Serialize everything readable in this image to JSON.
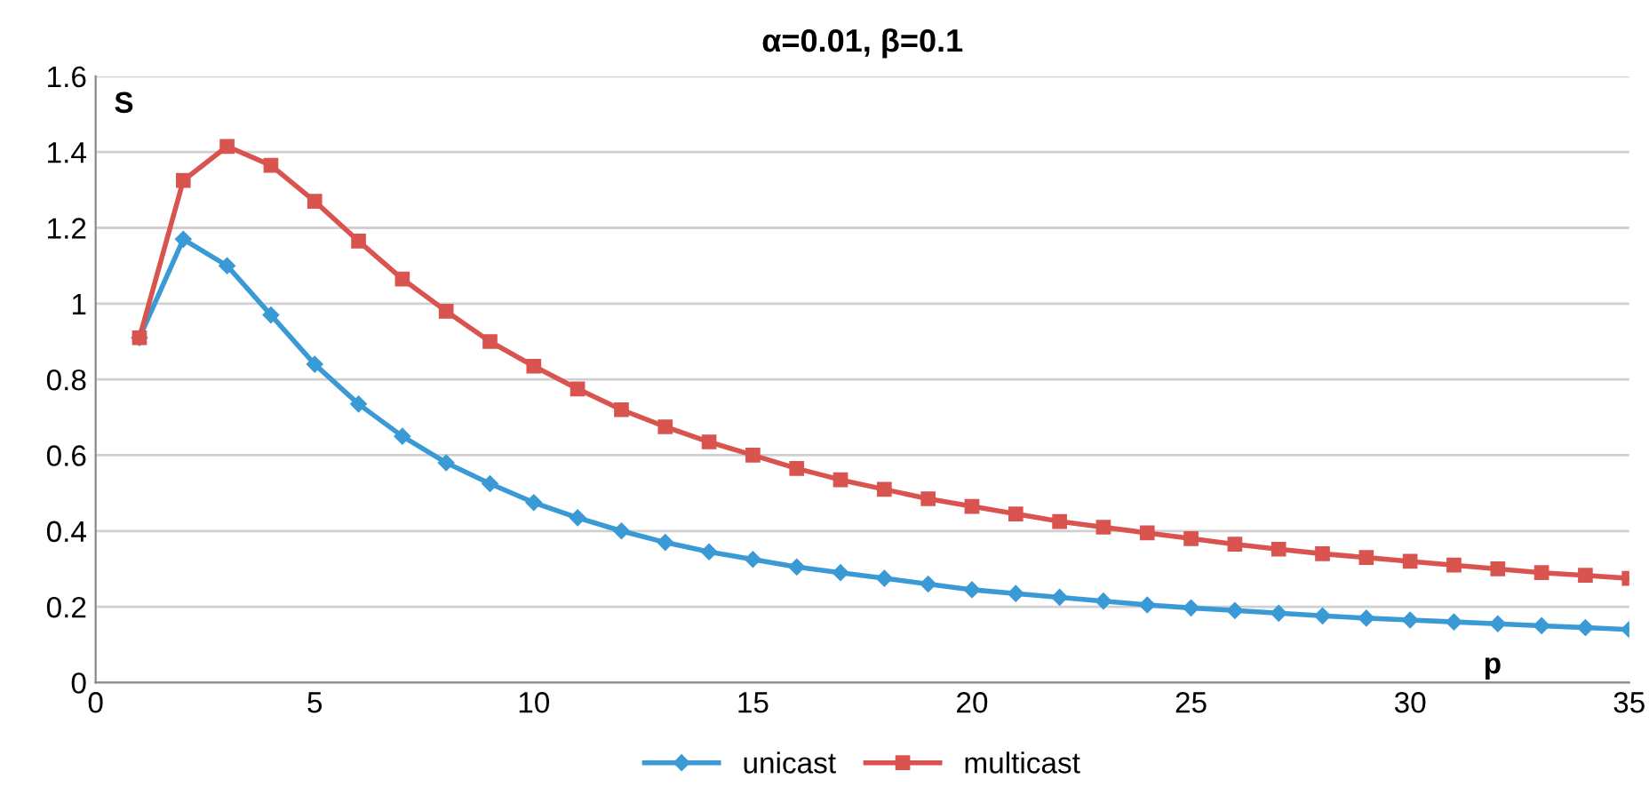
{
  "chart_data": {
    "type": "line",
    "title": "α=0.01, β=0.1",
    "xlabel": "p",
    "ylabel": "S",
    "xlim": [
      0,
      35
    ],
    "xticks": [
      0,
      5,
      10,
      15,
      20,
      25,
      30,
      35
    ],
    "ylim": [
      0,
      1.6
    ],
    "yticks": [
      0,
      0.2,
      0.4,
      0.6,
      0.8,
      1,
      1.2,
      1.4,
      1.6
    ],
    "grid": "y",
    "legend": "bottom",
    "line_style": "solid",
    "x": [
      1,
      2,
      3,
      4,
      5,
      6,
      7,
      8,
      9,
      10,
      11,
      12,
      13,
      14,
      15,
      16,
      17,
      18,
      19,
      20,
      21,
      22,
      23,
      24,
      25,
      26,
      27,
      28,
      29,
      30,
      31,
      32,
      33,
      34,
      35
    ],
    "series": [
      {
        "name": "unicast",
        "color": "#3a9ad6",
        "marker": "diamond",
        "values": [
          0.91,
          1.17,
          1.1,
          0.97,
          0.84,
          0.735,
          0.65,
          0.58,
          0.525,
          0.475,
          0.435,
          0.4,
          0.37,
          0.345,
          0.325,
          0.305,
          0.29,
          0.275,
          0.26,
          0.245,
          0.235,
          0.225,
          0.215,
          0.205,
          0.197,
          0.19,
          0.183,
          0.176,
          0.17,
          0.165,
          0.16,
          0.155,
          0.15,
          0.145,
          0.14
        ]
      },
      {
        "name": "multicast",
        "color": "#d9534f",
        "marker": "square",
        "values": [
          0.91,
          1.325,
          1.415,
          1.365,
          1.27,
          1.165,
          1.065,
          0.98,
          0.9,
          0.835,
          0.775,
          0.72,
          0.675,
          0.635,
          0.6,
          0.565,
          0.535,
          0.51,
          0.485,
          0.465,
          0.445,
          0.425,
          0.41,
          0.395,
          0.38,
          0.365,
          0.352,
          0.34,
          0.33,
          0.32,
          0.31,
          0.3,
          0.29,
          0.283,
          0.275
        ]
      }
    ]
  }
}
